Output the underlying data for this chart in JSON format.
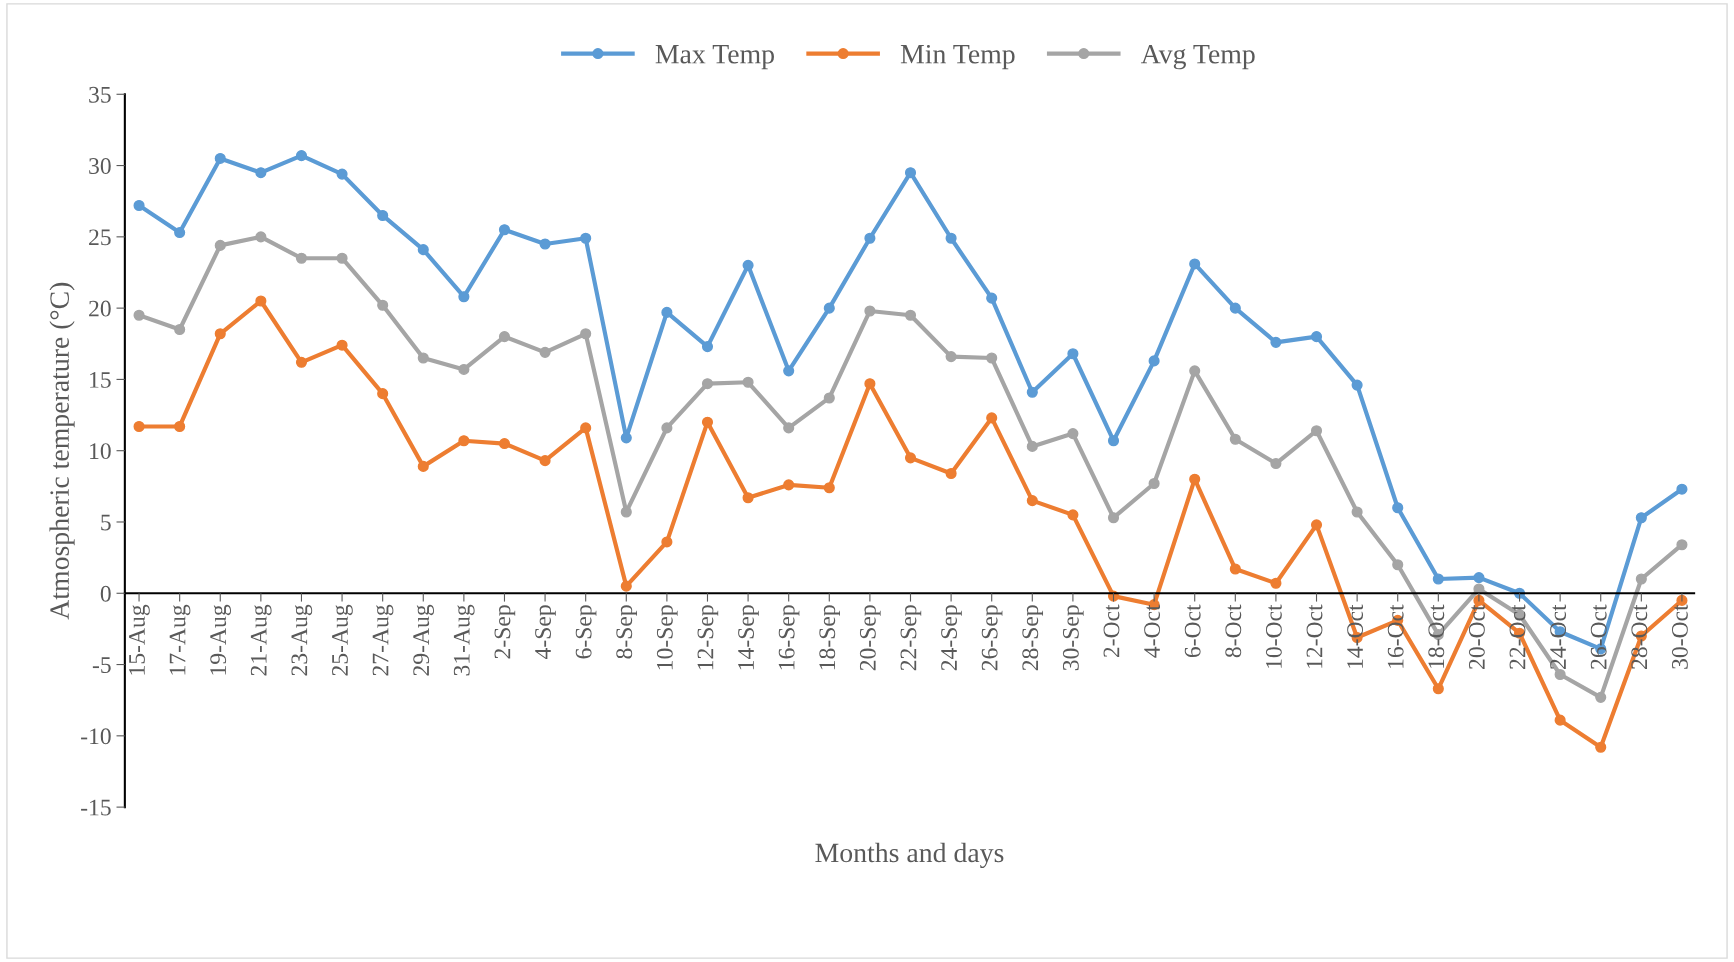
{
  "chart_data": {
    "type": "line",
    "xlabel": "Months and days",
    "ylabel": "Atmospheric temperature (°C)",
    "categories": [
      "15-Aug",
      "17-Aug",
      "19-Aug",
      "21-Aug",
      "23-Aug",
      "25-Aug",
      "27-Aug",
      "29-Aug",
      "31-Aug",
      "2-Sep",
      "4-Sep",
      "6-Sep",
      "8-Sep",
      "10-Sep",
      "12-Sep",
      "14-Sep",
      "16-Sep",
      "18-Sep",
      "20-Sep",
      "22-Sep",
      "24-Sep",
      "26-Sep",
      "28-Sep",
      "30-Sep",
      "2-Oct",
      "4-Oct",
      "6-Oct",
      "8-Oct",
      "10-Oct",
      "12-Oct",
      "14-Oct",
      "16-Oct",
      "18-Oct",
      "20-Oct",
      "22-Oct",
      "24-Oct",
      "26-Oct",
      "28-Oct",
      "30-Oct"
    ],
    "series": [
      {
        "name": "Max Temp",
        "color": "#5b9bd5",
        "values": [
          27.2,
          25.3,
          30.5,
          29.5,
          30.7,
          29.4,
          26.5,
          24.1,
          20.8,
          25.5,
          24.5,
          24.9,
          10.9,
          19.7,
          17.3,
          23.0,
          15.6,
          20.0,
          24.9,
          29.5,
          24.9,
          20.7,
          14.1,
          16.8,
          10.7,
          16.3,
          23.1,
          20.0,
          17.6,
          18.0,
          14.6,
          6.0,
          1.0,
          1.1,
          0.0,
          -2.7,
          -3.9,
          5.3,
          7.3
        ]
      },
      {
        "name": "Min Temp",
        "color": "#ed7d31",
        "values": [
          11.7,
          11.7,
          18.2,
          20.5,
          16.2,
          17.4,
          14.0,
          8.9,
          10.7,
          10.5,
          9.3,
          11.6,
          0.5,
          3.6,
          12.0,
          6.7,
          7.6,
          7.4,
          14.7,
          9.5,
          8.4,
          12.3,
          6.5,
          5.5,
          -0.2,
          -0.8,
          8.0,
          1.7,
          0.7,
          4.8,
          -3.1,
          -1.9,
          -6.7,
          -0.5,
          -2.8,
          -8.9,
          -10.8,
          -3.0,
          -0.5
        ]
      },
      {
        "name": "Avg Temp",
        "color": "#a5a5a5",
        "values": [
          19.5,
          18.5,
          24.4,
          25.0,
          23.5,
          23.5,
          20.2,
          16.5,
          15.7,
          18.0,
          16.9,
          18.2,
          5.7,
          11.6,
          14.7,
          14.8,
          11.6,
          13.7,
          19.8,
          19.5,
          16.6,
          16.5,
          10.3,
          11.2,
          5.3,
          7.7,
          15.6,
          10.8,
          9.1,
          11.4,
          5.7,
          2.0,
          -2.9,
          0.3,
          -1.5,
          -5.7,
          -7.3,
          1.0,
          3.4
        ]
      }
    ],
    "ylim": [
      -15,
      35
    ],
    "yticks": [
      -15,
      -10,
      -5,
      0,
      5,
      10,
      15,
      20,
      25,
      30,
      35
    ],
    "legend": "top",
    "marker": "circle",
    "line_style": "solid",
    "grid": false
  }
}
